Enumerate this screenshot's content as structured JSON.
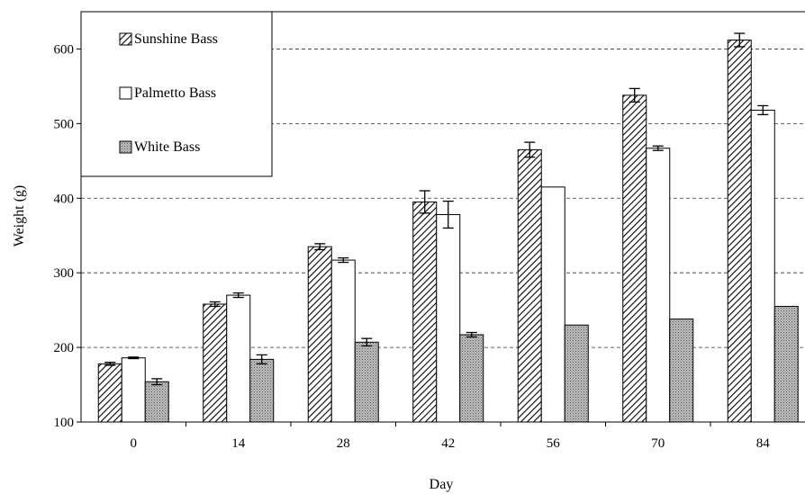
{
  "chart_data": {
    "type": "bar",
    "title": "",
    "xlabel": "Day",
    "ylabel": "Weight (g)",
    "categories": [
      "0",
      "14",
      "28",
      "42",
      "56",
      "70",
      "84"
    ],
    "ylim": [
      100,
      650
    ],
    "yticks": [
      100,
      200,
      300,
      400,
      500,
      600
    ],
    "grid": "horizontal-dashed",
    "legend_position": "top-left",
    "series": [
      {
        "name": "Sunshine Bass",
        "pattern": "diagonal-hatch",
        "values": [
          178,
          258,
          335,
          395,
          465,
          538,
          612
        ],
        "errors": [
          2,
          3,
          4,
          15,
          10,
          9,
          9
        ]
      },
      {
        "name": "Palmetto Bass",
        "pattern": "white",
        "values": [
          186,
          270,
          317,
          378,
          415,
          467,
          518
        ],
        "errors": [
          1,
          3,
          3,
          18,
          0,
          3,
          6
        ]
      },
      {
        "name": "White Bass",
        "pattern": "dotted-gray",
        "values": [
          154,
          184,
          207,
          217,
          230,
          238,
          255
        ],
        "errors": [
          4,
          6,
          5,
          3,
          0,
          0,
          0
        ]
      }
    ]
  }
}
